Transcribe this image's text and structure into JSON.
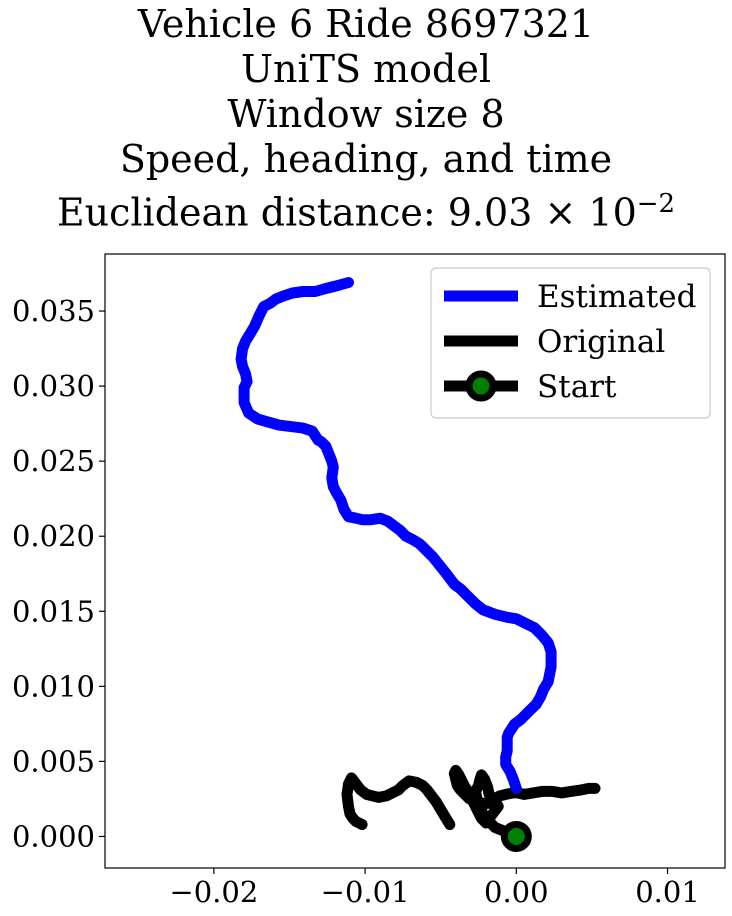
{
  "chart_data": {
    "type": "line",
    "title_lines": [
      "Vehicle 6 Ride 8697321",
      "UniTS model",
      "Window size 8",
      "Speed, heading, and time"
    ],
    "title_metric_prefix": "Euclidean distance: ",
    "title_metric_mantissa": "9.03",
    "title_metric_times": "×",
    "title_metric_base": "10",
    "title_metric_exponent": "−2",
    "xlim": [
      -0.0272,
      0.0138
    ],
    "ylim": [
      -0.0021,
      0.0388
    ],
    "xticks": [
      -0.02,
      -0.01,
      0.0,
      0.01
    ],
    "xtick_labels": [
      "−0.02",
      "−0.01",
      "0.00",
      "0.01"
    ],
    "yticks": [
      0.0,
      0.005,
      0.01,
      0.015,
      0.02,
      0.025,
      0.03,
      0.035
    ],
    "ytick_labels": [
      "0.000",
      "0.005",
      "0.010",
      "0.015",
      "0.020",
      "0.025",
      "0.030",
      "0.035"
    ],
    "legend_position": "upper right",
    "series": [
      {
        "name": "Estimated",
        "color": "#0000ff",
        "x": [
          0.0,
          -0.0002,
          -0.0004,
          -0.0007,
          -0.0007,
          -0.0006,
          -0.0006,
          -0.0006,
          -0.0005,
          -0.0003,
          -0.0001,
          0.0003,
          0.0005,
          0.0009,
          0.0013,
          0.0016,
          0.0018,
          0.0021,
          0.0022,
          0.0023,
          0.0023,
          0.0023,
          0.0021,
          0.0017,
          0.0012,
          0.0006,
          0.0,
          -0.0006,
          -0.0014,
          -0.0022,
          -0.0027,
          -0.0032,
          -0.0037,
          -0.0041,
          -0.0044,
          -0.0047,
          -0.0051,
          -0.0055,
          -0.0059,
          -0.0064,
          -0.0069,
          -0.0073,
          -0.0077,
          -0.0081,
          -0.0085,
          -0.009,
          -0.0096,
          -0.0102,
          -0.0106,
          -0.0111,
          -0.0114,
          -0.0116,
          -0.0119,
          -0.0121,
          -0.0122,
          -0.0121,
          -0.0122,
          -0.0124,
          -0.0126,
          -0.0129,
          -0.0131,
          -0.0133,
          -0.0135,
          -0.0141,
          -0.0149,
          -0.0157,
          -0.0164,
          -0.0171,
          -0.0177,
          -0.018,
          -0.018,
          -0.0178,
          -0.0179,
          -0.0181,
          -0.0182,
          -0.0181,
          -0.0179,
          -0.0176,
          -0.0173,
          -0.017,
          -0.0167,
          -0.0163,
          -0.0159,
          -0.0154,
          -0.0148,
          -0.0141,
          -0.0133,
          -0.0126,
          -0.0118,
          -0.0111
        ],
        "y": [
          0.0032,
          0.0038,
          0.0043,
          0.0048,
          0.0053,
          0.0057,
          0.0062,
          0.0066,
          0.0069,
          0.0072,
          0.0075,
          0.0078,
          0.008,
          0.0084,
          0.0088,
          0.0093,
          0.0098,
          0.0103,
          0.0108,
          0.0113,
          0.0118,
          0.0123,
          0.0129,
          0.0134,
          0.0139,
          0.0142,
          0.0145,
          0.0146,
          0.0148,
          0.0151,
          0.0155,
          0.016,
          0.0165,
          0.0168,
          0.0172,
          0.0176,
          0.0181,
          0.0186,
          0.019,
          0.0195,
          0.0198,
          0.02,
          0.0204,
          0.0207,
          0.021,
          0.0212,
          0.0211,
          0.0211,
          0.0212,
          0.0213,
          0.0218,
          0.0224,
          0.0229,
          0.0233,
          0.0239,
          0.0246,
          0.025,
          0.0255,
          0.026,
          0.0263,
          0.0264,
          0.0267,
          0.027,
          0.0272,
          0.0273,
          0.0274,
          0.0276,
          0.0278,
          0.0282,
          0.0289,
          0.0299,
          0.0303,
          0.0308,
          0.0313,
          0.0318,
          0.0325,
          0.033,
          0.0335,
          0.034,
          0.0347,
          0.0353,
          0.0355,
          0.0358,
          0.036,
          0.0362,
          0.0363,
          0.0363,
          0.0365,
          0.0367,
          0.0369
        ]
      },
      {
        "name": "Original",
        "color": "#000000",
        "x": [
          0.0,
          -0.0005,
          -0.0009,
          -0.0014,
          -0.0018,
          -0.0022,
          -0.0024,
          -0.0026,
          -0.0027,
          -0.0025,
          -0.0024,
          -0.0023,
          -0.0021,
          -0.0019,
          -0.0018,
          -0.0014,
          -0.0012,
          -0.0015,
          -0.0018,
          -0.002,
          -0.0023,
          -0.0026,
          -0.0029,
          -0.0031,
          -0.0034,
          -0.0036,
          -0.0038,
          -0.004,
          -0.0041,
          -0.004,
          -0.0039,
          -0.0037,
          -0.0035,
          -0.0033,
          -0.0031,
          -0.0028,
          -0.0025,
          -0.0022,
          -0.0019,
          -0.0017,
          -0.0014,
          -0.0011,
          -0.0007,
          -0.0002,
          0.0001,
          0.0005,
          0.0011,
          0.0017,
          0.0024,
          0.003,
          0.0036,
          0.0043,
          0.0048,
          0.0052
        ],
        "y": [
          0.0,
          0.0002,
          0.0004,
          0.0006,
          0.001,
          0.0015,
          0.002,
          0.0025,
          0.003,
          0.0034,
          0.0038,
          0.0041,
          0.0038,
          0.0033,
          0.0028,
          0.0024,
          0.002,
          0.0016,
          0.0012,
          0.0009,
          0.0012,
          0.0018,
          0.0024,
          0.0029,
          0.0033,
          0.0037,
          0.0041,
          0.0044,
          0.0042,
          0.0038,
          0.0034,
          0.0031,
          0.0029,
          0.0027,
          0.0025,
          0.0024,
          0.0023,
          0.0022,
          0.0022,
          0.0023,
          0.0025,
          0.0027,
          0.0028,
          0.0029,
          0.0029,
          0.0028,
          0.0029,
          0.003,
          0.003,
          0.0029,
          0.003,
          0.0031,
          0.0032,
          0.0032
        ]
      },
      {
        "name": "Original",
        "color": "#000000",
        "legend": false,
        "x": [
          -0.0044,
          -0.0047,
          -0.005,
          -0.0053,
          -0.0056,
          -0.0059,
          -0.0062,
          -0.0066,
          -0.0071,
          -0.0075,
          -0.0078,
          -0.0082,
          -0.0086,
          -0.0091,
          -0.0095,
          -0.0099,
          -0.0103,
          -0.0106,
          -0.0109,
          -0.0111,
          -0.0112,
          -0.0111,
          -0.011,
          -0.0108,
          -0.0106,
          -0.0104,
          -0.0102
        ],
        "y": [
          0.0008,
          0.0013,
          0.0018,
          0.0023,
          0.0027,
          0.0031,
          0.0034,
          0.0036,
          0.0037,
          0.0034,
          0.0031,
          0.0029,
          0.0027,
          0.0026,
          0.0027,
          0.0028,
          0.0031,
          0.0035,
          0.0039,
          0.0035,
          0.0028,
          0.002,
          0.0015,
          0.0012,
          0.001,
          0.0009,
          0.0008
        ]
      }
    ],
    "start_marker": {
      "name": "Start",
      "x": 0.0,
      "y": 0.0,
      "outer_color": "#000000",
      "inner_color": "#008000"
    }
  }
}
